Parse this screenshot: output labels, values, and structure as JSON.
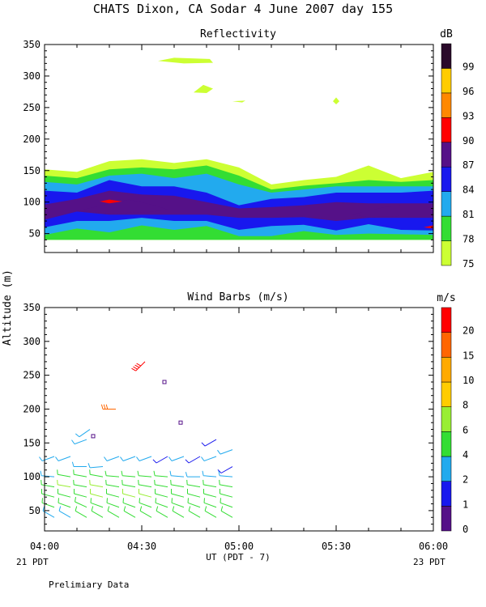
{
  "title": "CHATS Dixon, CA  Sodar    4 June 2007   day 155",
  "footer_note": "Prelimiary Data",
  "colors": {
    "y": "#ccff33",
    "lg": "#33dd33",
    "c": "#22aaee",
    "b": "#1818ee",
    "p": "#551188",
    "d": "#2a0a2a",
    "r": "#ff0000"
  },
  "chart_data": [
    {
      "type": "heatmap",
      "title": "Reflectivity",
      "ylim": [
        20,
        350
      ],
      "yticks": [
        50,
        100,
        150,
        200,
        250,
        300,
        350
      ],
      "xlim": [
        "04:00",
        "06:00"
      ],
      "xticks": [
        "04:00",
        "04:30",
        "05:00",
        "05:30",
        "06:00"
      ],
      "colorbar_unit": "dB",
      "colorbar_levels": [
        {
          "label": "75",
          "color": "#ccff33"
        },
        {
          "label": "78",
          "color": "#33dd33"
        },
        {
          "label": "81",
          "color": "#22aaee"
        },
        {
          "label": "84",
          "color": "#1818ee"
        },
        {
          "label": "87",
          "color": "#551188"
        },
        {
          "label": "90",
          "color": "#ff0000"
        },
        {
          "label": "93",
          "color": "#ff8800"
        },
        {
          "label": "96",
          "color": "#ffcc00"
        },
        {
          "label": "99",
          "color": "#2a0a2a"
        }
      ],
      "contour_x": [
        "04:00",
        "04:10",
        "04:20",
        "04:30",
        "04:40",
        "04:50",
        "05:00",
        "05:10",
        "05:20",
        "05:30",
        "05:40",
        "05:50",
        "06:00"
      ],
      "contours": [
        {
          "level": "75",
          "lower": [
            40,
            40,
            40,
            40,
            40,
            40,
            40,
            40,
            40,
            40,
            40,
            40,
            40
          ],
          "upper": [
            152,
            148,
            165,
            168,
            162,
            168,
            155,
            128,
            135,
            140,
            158,
            138,
            148
          ]
        },
        {
          "level": "78",
          "lower": [
            40,
            40,
            40,
            40,
            40,
            40,
            40,
            40,
            40,
            40,
            40,
            40,
            40
          ],
          "upper": [
            142,
            138,
            152,
            155,
            152,
            158,
            142,
            120,
            126,
            130,
            135,
            132,
            135
          ]
        },
        {
          "level": "81",
          "lower": [
            48,
            58,
            52,
            63,
            56,
            62,
            46,
            46,
            54,
            48,
            50,
            49,
            48
          ],
          "upper": [
            132,
            128,
            142,
            145,
            138,
            145,
            128,
            115,
            120,
            125,
            125,
            125,
            125
          ]
        },
        {
          "level": "84",
          "lower": [
            60,
            70,
            70,
            75,
            70,
            70,
            56,
            62,
            64,
            55,
            65,
            56,
            55
          ],
          "upper": [
            118,
            115,
            135,
            125,
            125,
            115,
            95,
            105,
            108,
            115,
            115,
            115,
            118
          ]
        },
        {
          "level": "87",
          "lower": [
            72,
            85,
            80,
            80,
            80,
            80,
            75,
            75,
            76,
            70,
            75,
            75,
            75
          ],
          "upper": [
            96,
            105,
            118,
            112,
            110,
            100,
            90,
            92,
            95,
            100,
            98,
            98,
            98
          ]
        }
      ],
      "isolated_patches": [
        {
          "level": "75",
          "desc": "cloud near 325 m at 04:40"
        },
        {
          "level": "75",
          "desc": "cloud near 280 m at 04:50"
        },
        {
          "level": "75",
          "desc": "cloud near 262 m at 05:00"
        },
        {
          "level": "75",
          "desc": "cloud near 262 m at 05:30"
        },
        {
          "level": "90",
          "desc": "core near 100 m at 04:20"
        }
      ]
    },
    {
      "type": "scatter",
      "title": "Wind Barbs (m/s)",
      "ylim": [
        20,
        350
      ],
      "yticks": [
        50,
        100,
        150,
        200,
        250,
        300,
        350
      ],
      "xlim": [
        "04:00",
        "06:00"
      ],
      "xticks": [
        "04:00",
        "04:30",
        "05:00",
        "05:30",
        "06:00"
      ],
      "xlabel": "UT  (PDT - 7)",
      "ylabel": "Altitude  (m)",
      "x_start_label": "21 PDT",
      "x_end_label": "23 PDT",
      "colorbar_unit": "m/s",
      "colorbar_levels": [
        {
          "label": "0",
          "color": "#551188"
        },
        {
          "label": "1",
          "color": "#1818ee"
        },
        {
          "label": "2",
          "color": "#22aaee"
        },
        {
          "label": "4",
          "color": "#33dd33"
        },
        {
          "label": "6",
          "color": "#99ee33"
        },
        {
          "label": "8",
          "color": "#ffcc00"
        },
        {
          "label": "10",
          "color": "#ffaa00"
        },
        {
          "label": "15",
          "color": "#ff6600"
        },
        {
          "label": "20",
          "color": "#ff0000"
        }
      ],
      "barb_columns_min": [
        3,
        8,
        13,
        18,
        23,
        28,
        33,
        38,
        43,
        48,
        53,
        58
      ],
      "barb_altitudes_m": [
        40,
        55,
        70,
        85,
        100,
        115,
        130,
        155
      ],
      "barbs": [
        {
          "t": 3,
          "alt": 40,
          "speed": 3,
          "dir": 300
        },
        {
          "t": 3,
          "alt": 55,
          "speed": 4,
          "dir": 290
        },
        {
          "t": 3,
          "alt": 70,
          "speed": 4,
          "dir": 285
        },
        {
          "t": 3,
          "alt": 85,
          "speed": 4,
          "dir": 280
        },
        {
          "t": 3,
          "alt": 100,
          "speed": 3,
          "dir": 275
        },
        {
          "t": 3,
          "alt": 130,
          "speed": 2,
          "dir": 250
        },
        {
          "t": 8,
          "alt": 40,
          "speed": 3,
          "dir": 300
        },
        {
          "t": 8,
          "alt": 55,
          "speed": 4,
          "dir": 290
        },
        {
          "t": 8,
          "alt": 70,
          "speed": 5,
          "dir": 285
        },
        {
          "t": 8,
          "alt": 85,
          "speed": 6,
          "dir": 280
        },
        {
          "t": 8,
          "alt": 100,
          "speed": 4,
          "dir": 280
        },
        {
          "t": 8,
          "alt": 130,
          "speed": 2,
          "dir": 250
        },
        {
          "t": 13,
          "alt": 40,
          "speed": 4,
          "dir": 300
        },
        {
          "t": 13,
          "alt": 55,
          "speed": 4,
          "dir": 295
        },
        {
          "t": 13,
          "alt": 70,
          "speed": 5,
          "dir": 285
        },
        {
          "t": 13,
          "alt": 85,
          "speed": 5,
          "dir": 280
        },
        {
          "t": 13,
          "alt": 100,
          "speed": 4,
          "dir": 280
        },
        {
          "t": 13,
          "alt": 115,
          "speed": 3,
          "dir": 270
        },
        {
          "t": 13,
          "alt": 155,
          "speed": 2,
          "dir": 250
        },
        {
          "t": 18,
          "alt": 40,
          "speed": 4,
          "dir": 300
        },
        {
          "t": 18,
          "alt": 55,
          "speed": 5,
          "dir": 290
        },
        {
          "t": 18,
          "alt": 70,
          "speed": 6,
          "dir": 285
        },
        {
          "t": 18,
          "alt": 85,
          "speed": 6,
          "dir": 280
        },
        {
          "t": 18,
          "alt": 100,
          "speed": 5,
          "dir": 280
        },
        {
          "t": 18,
          "alt": 115,
          "speed": 3,
          "dir": 265
        },
        {
          "t": 23,
          "alt": 40,
          "speed": 4,
          "dir": 300
        },
        {
          "t": 23,
          "alt": 55,
          "speed": 4,
          "dir": 290
        },
        {
          "t": 23,
          "alt": 70,
          "speed": 5,
          "dir": 285
        },
        {
          "t": 23,
          "alt": 85,
          "speed": 5,
          "dir": 280
        },
        {
          "t": 23,
          "alt": 100,
          "speed": 4,
          "dir": 275
        },
        {
          "t": 23,
          "alt": 130,
          "speed": 2,
          "dir": 250
        },
        {
          "t": 28,
          "alt": 40,
          "speed": 4,
          "dir": 300
        },
        {
          "t": 28,
          "alt": 55,
          "speed": 5,
          "dir": 290
        },
        {
          "t": 28,
          "alt": 70,
          "speed": 6,
          "dir": 285
        },
        {
          "t": 28,
          "alt": 85,
          "speed": 5,
          "dir": 280
        },
        {
          "t": 28,
          "alt": 100,
          "speed": 4,
          "dir": 275
        },
        {
          "t": 28,
          "alt": 130,
          "speed": 2,
          "dir": 250
        },
        {
          "t": 33,
          "alt": 40,
          "speed": 4,
          "dir": 300
        },
        {
          "t": 33,
          "alt": 55,
          "speed": 5,
          "dir": 290
        },
        {
          "t": 33,
          "alt": 70,
          "speed": 6,
          "dir": 285
        },
        {
          "t": 33,
          "alt": 85,
          "speed": 5,
          "dir": 280
        },
        {
          "t": 33,
          "alt": 100,
          "speed": 4,
          "dir": 275
        },
        {
          "t": 33,
          "alt": 130,
          "speed": 2,
          "dir": 250
        },
        {
          "t": 38,
          "alt": 40,
          "speed": 4,
          "dir": 300
        },
        {
          "t": 38,
          "alt": 55,
          "speed": 4,
          "dir": 290
        },
        {
          "t": 38,
          "alt": 70,
          "speed": 5,
          "dir": 285
        },
        {
          "t": 38,
          "alt": 85,
          "speed": 5,
          "dir": 280
        },
        {
          "t": 38,
          "alt": 100,
          "speed": 4,
          "dir": 275
        },
        {
          "t": 38,
          "alt": 130,
          "speed": 1,
          "dir": 240
        },
        {
          "t": 43,
          "alt": 40,
          "speed": 4,
          "dir": 300
        },
        {
          "t": 43,
          "alt": 55,
          "speed": 4,
          "dir": 290
        },
        {
          "t": 43,
          "alt": 70,
          "speed": 4,
          "dir": 285
        },
        {
          "t": 43,
          "alt": 85,
          "speed": 4,
          "dir": 280
        },
        {
          "t": 43,
          "alt": 100,
          "speed": 3,
          "dir": 275
        },
        {
          "t": 43,
          "alt": 130,
          "speed": 2,
          "dir": 250
        },
        {
          "t": 48,
          "alt": 40,
          "speed": 4,
          "dir": 300
        },
        {
          "t": 48,
          "alt": 55,
          "speed": 4,
          "dir": 290
        },
        {
          "t": 48,
          "alt": 70,
          "speed": 5,
          "dir": 285
        },
        {
          "t": 48,
          "alt": 85,
          "speed": 4,
          "dir": 280
        },
        {
          "t": 48,
          "alt": 100,
          "speed": 3,
          "dir": 270
        },
        {
          "t": 48,
          "alt": 130,
          "speed": 1,
          "dir": 240
        },
        {
          "t": 53,
          "alt": 40,
          "speed": 4,
          "dir": 300
        },
        {
          "t": 53,
          "alt": 55,
          "speed": 4,
          "dir": 290
        },
        {
          "t": 53,
          "alt": 70,
          "speed": 4,
          "dir": 285
        },
        {
          "t": 53,
          "alt": 85,
          "speed": 4,
          "dir": 280
        },
        {
          "t": 53,
          "alt": 100,
          "speed": 3,
          "dir": 275
        },
        {
          "t": 53,
          "alt": 130,
          "speed": 2,
          "dir": 250
        },
        {
          "t": 53,
          "alt": 155,
          "speed": 1,
          "dir": 240
        },
        {
          "t": 58,
          "alt": 40,
          "speed": 4,
          "dir": 300
        },
        {
          "t": 58,
          "alt": 55,
          "speed": 4,
          "dir": 290
        },
        {
          "t": 58,
          "alt": 70,
          "speed": 4,
          "dir": 285
        },
        {
          "t": 58,
          "alt": 85,
          "speed": 4,
          "dir": 280
        },
        {
          "t": 58,
          "alt": 100,
          "speed": 3,
          "dir": 275
        },
        {
          "t": 58,
          "alt": 115,
          "speed": 1,
          "dir": 240
        },
        {
          "t": 58,
          "alt": 140,
          "speed": 2,
          "dir": 250
        }
      ],
      "isolated_barbs": [
        {
          "t": 31,
          "alt": 270,
          "speed": 20,
          "dir": 225
        },
        {
          "t": 22,
          "alt": 200,
          "speed": 15,
          "dir": 270
        },
        {
          "t": 14,
          "alt": 170,
          "speed": 2,
          "dir": 235
        },
        {
          "t": 37,
          "alt": 240,
          "speed": 0,
          "dir": 0
        },
        {
          "t": 15,
          "alt": 160,
          "speed": 0,
          "dir": 0
        },
        {
          "t": 42,
          "alt": 180,
          "speed": 0,
          "dir": 0
        }
      ]
    }
  ]
}
